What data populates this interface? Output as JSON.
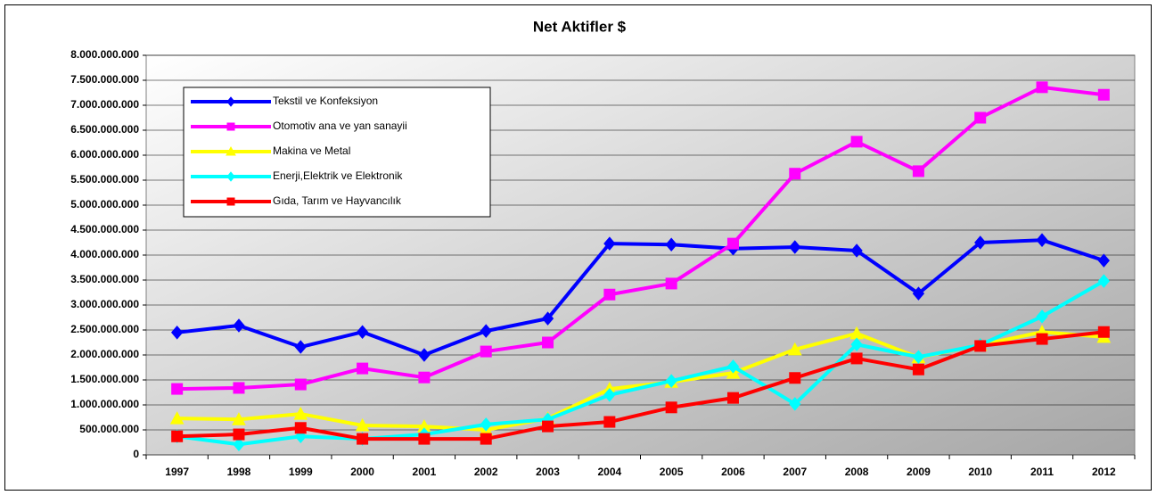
{
  "chart_data": {
    "type": "line",
    "title": "Net Aktifler $",
    "categories": [
      "1997",
      "1998",
      "1999",
      "2000",
      "2001",
      "2002",
      "2003",
      "2004",
      "2005",
      "2006",
      "2007",
      "2008",
      "2009",
      "2010",
      "2011",
      "2012"
    ],
    "ylim": [
      0,
      8000000000
    ],
    "yticks": [
      {
        "value": 0,
        "label": "0"
      },
      {
        "value": 500000000,
        "label": "500.000.000"
      },
      {
        "value": 1000000000,
        "label": "1.000.000.000"
      },
      {
        "value": 1500000000,
        "label": "1.500.000.000"
      },
      {
        "value": 2000000000,
        "label": "2.000.000.000"
      },
      {
        "value": 2500000000,
        "label": "2.500.000.000"
      },
      {
        "value": 3000000000,
        "label": "3.000.000.000"
      },
      {
        "value": 3500000000,
        "label": "3.500.000.000"
      },
      {
        "value": 4000000000,
        "label": "4.000.000.000"
      },
      {
        "value": 4500000000,
        "label": "4.500.000.000"
      },
      {
        "value": 5000000000,
        "label": "5.000.000.000"
      },
      {
        "value": 5500000000,
        "label": "5.500.000.000"
      },
      {
        "value": 6000000000,
        "label": "6.000.000.000"
      },
      {
        "value": 6500000000,
        "label": "6.500.000.000"
      },
      {
        "value": 7000000000,
        "label": "7.000.000.000"
      },
      {
        "value": 7500000000,
        "label": "7.500.000.000"
      },
      {
        "value": 8000000000,
        "label": "8.000.000.000"
      }
    ],
    "grid": true,
    "legend": "upper left",
    "series": [
      {
        "name": "Tekstil ve Konfeksiyon",
        "color": "#0000ff",
        "marker": "diamond",
        "values": [
          2450000000,
          2590000000,
          2160000000,
          2460000000,
          2000000000,
          2480000000,
          2730000000,
          4230000000,
          4210000000,
          4130000000,
          4160000000,
          4090000000,
          3230000000,
          4250000000,
          4300000000,
          3890000000
        ]
      },
      {
        "name": "Otomotiv ana ve yan sanayii",
        "color": "#ff00ff",
        "marker": "square",
        "values": [
          1320000000,
          1340000000,
          1410000000,
          1730000000,
          1550000000,
          2070000000,
          2250000000,
          3210000000,
          3430000000,
          4230000000,
          5630000000,
          6270000000,
          5680000000,
          6750000000,
          7360000000,
          7210000000
        ]
      },
      {
        "name": "Makina ve Metal",
        "color": "#ffff00",
        "marker": "triangle",
        "values": [
          730000000,
          710000000,
          820000000,
          590000000,
          570000000,
          500000000,
          730000000,
          1320000000,
          1460000000,
          1640000000,
          2110000000,
          2430000000,
          1950000000,
          2200000000,
          2460000000,
          2360000000
        ]
      },
      {
        "name": "Enerji,Elektrik ve Elektronik",
        "color": "#00ffff",
        "marker": "diamond",
        "values": [
          370000000,
          210000000,
          370000000,
          320000000,
          410000000,
          610000000,
          710000000,
          1200000000,
          1480000000,
          1770000000,
          1020000000,
          2210000000,
          1960000000,
          2200000000,
          2770000000,
          3480000000
        ]
      },
      {
        "name": "Gıda, Tarım ve Hayvancılık",
        "color": "#ff0000",
        "marker": "square",
        "values": [
          370000000,
          410000000,
          540000000,
          320000000,
          320000000,
          320000000,
          570000000,
          660000000,
          950000000,
          1140000000,
          1540000000,
          1930000000,
          1710000000,
          2180000000,
          2320000000,
          2460000000
        ]
      }
    ]
  }
}
